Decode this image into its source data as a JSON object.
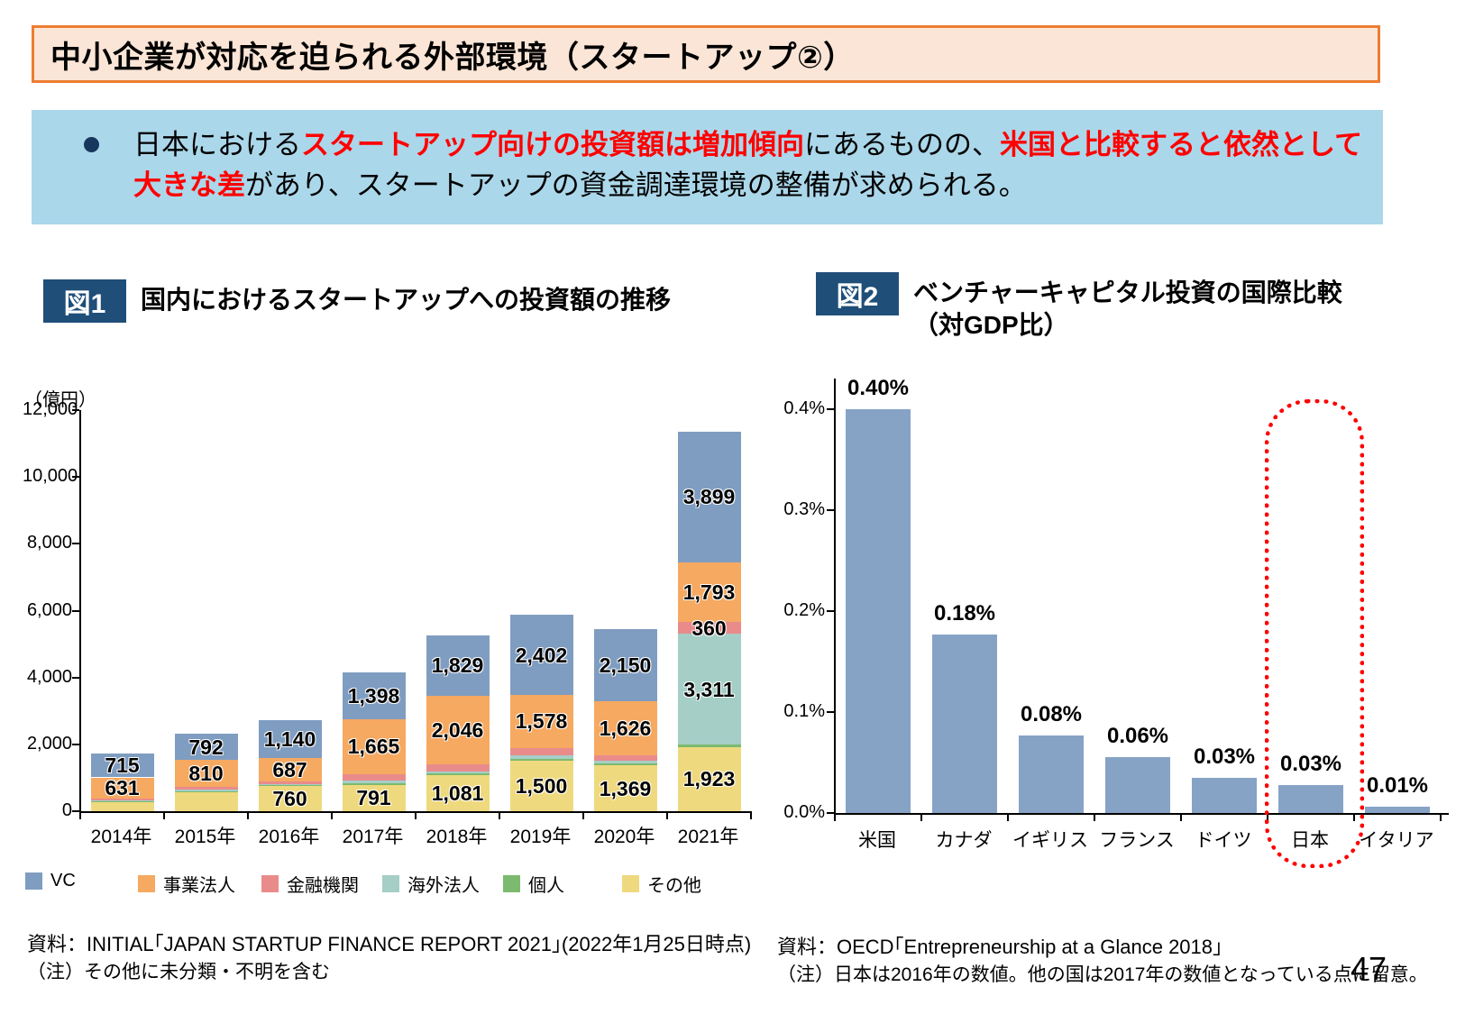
{
  "header": {
    "title": "中小企業が対応を迫られる外部環境（スタートアップ②）"
  },
  "lead": {
    "segments": [
      {
        "text": "日本における",
        "emphasis": false
      },
      {
        "text": "スタートアップ向けの投資額は増加傾向",
        "emphasis": true
      },
      {
        "text": "にあるものの、",
        "emphasis": false
      },
      {
        "text": "米国と比較すると依然として大きな差",
        "emphasis": true
      },
      {
        "text": "があり、スタートアップの資金調達環境の整備が求められる。",
        "emphasis": false
      }
    ]
  },
  "fig1": {
    "badge": "図1",
    "title": "国内におけるスタートアップへの投資額の推移",
    "unit_label": "（億円）",
    "source": "資料：INITIAL｢JAPAN STARTUP FINANCE REPORT 2021｣(2022年1月25日時点)",
    "note": "（注）その他に未分類・不明を含む"
  },
  "fig2": {
    "badge": "図2",
    "title_line1": "ベンチャーキャピタル投資の国際比較",
    "title_line2": "（対GDP比）",
    "source": "資料：OECD｢Entrepreneurship at a Glance 2018｣",
    "note": "（注）日本は2016年の数値。他の国は2017年の数値となっている点に留意。"
  },
  "page_number": "47",
  "colors": {
    "title_bar_bg": "#FBE5D6",
    "title_bar_border": "#ED7D31",
    "lead_bg": "#ABD7EA",
    "bullet": "#17375E",
    "badge_bg": "#1F4E79",
    "emphasis_red": "#FF0000",
    "highlight_red": "#FF0000",
    "axis_black": "#000000"
  },
  "chart_data": [
    {
      "type": "bar",
      "stacked": true,
      "title": "国内におけるスタートアップへの投資額の推移",
      "ylabel": "（億円）",
      "ylim": [
        0,
        12000
      ],
      "grid": false,
      "legend_position": "bottom",
      "categories": [
        "2014年",
        "2015年",
        "2016年",
        "2017年",
        "2018年",
        "2019年",
        "2020年",
        "2021年"
      ],
      "yticks": [
        {
          "v": 0,
          "label": "0"
        },
        {
          "v": 2000,
          "label": "2,000"
        },
        {
          "v": 4000,
          "label": "4,000"
        },
        {
          "v": 6000,
          "label": "6,000"
        },
        {
          "v": 8000,
          "label": "8,000"
        },
        {
          "v": 10000,
          "label": "10,000"
        },
        {
          "v": 12000,
          "label": "12,000"
        }
      ],
      "series_note": "series listed bottom-to-top of the stack; unlabeled thin segments are pixel estimates",
      "series": [
        {
          "key": "other",
          "name": "その他",
          "color": "#EFD97E",
          "values": [
            280,
            560,
            760,
            791,
            1081,
            1500,
            1369,
            1923
          ],
          "labels": [
            null,
            null,
            "760",
            "791",
            "1,081",
            "1,500",
            "1,369",
            "1,923"
          ]
        },
        {
          "key": "individual",
          "name": "個人",
          "color": "#7CBA6F",
          "values": [
            35,
            40,
            25,
            40,
            60,
            55,
            55,
            65
          ],
          "labels": [
            null,
            null,
            null,
            null,
            null,
            null,
            null,
            null
          ]
        },
        {
          "key": "foreign",
          "name": "海外法人",
          "color": "#A5CEC6",
          "values": [
            20,
            45,
            20,
            90,
            55,
            110,
            75,
            3311
          ],
          "labels": [
            null,
            null,
            null,
            null,
            null,
            null,
            null,
            "3,311"
          ]
        },
        {
          "key": "financial",
          "name": "金融機関",
          "color": "#E98B8B",
          "values": [
            45,
            75,
            95,
            175,
            200,
            230,
            175,
            360
          ],
          "labels": [
            null,
            null,
            null,
            null,
            null,
            null,
            null,
            "360"
          ]
        },
        {
          "key": "corporate",
          "name": "事業法人",
          "color": "#F6A961",
          "values": [
            631,
            810,
            687,
            1665,
            2046,
            1578,
            1626,
            1793
          ],
          "labels": [
            "631",
            "810",
            "687",
            "1,665",
            "2,046",
            "1,578",
            "1,626",
            "1,793"
          ]
        },
        {
          "key": "vc",
          "name": "VC",
          "color": "#7F9DC1",
          "values": [
            715,
            792,
            1140,
            1398,
            1829,
            2402,
            2150,
            3899
          ],
          "labels": [
            "715",
            "792",
            "1,140",
            "1,398",
            "1,829",
            "2,402",
            "2,150",
            "3,899"
          ]
        }
      ],
      "legend_order": [
        "VC",
        "事業法人",
        "金融機関",
        "海外法人",
        "個人",
        "その他"
      ]
    },
    {
      "type": "bar",
      "title": "ベンチャーキャピタル投資の国際比較（対GDP比）",
      "grid": false,
      "categories": [
        "米国",
        "カナダ",
        "イギリス",
        "フランス",
        "ドイツ",
        "日本",
        "イタリア"
      ],
      "values": [
        0.4,
        0.18,
        0.08,
        0.06,
        0.03,
        0.03,
        0.01
      ],
      "bar_labels": [
        "0.40%",
        "0.18%",
        "0.08%",
        "0.06%",
        "0.03%",
        "0.03%",
        "0.01%"
      ],
      "values_render": [
        0.4,
        0.177,
        0.077,
        0.055,
        0.035,
        0.028,
        0.006
      ],
      "ylim": [
        0,
        0.45
      ],
      "yticks": [
        {
          "v": 0.0,
          "label": "0.0%"
        },
        {
          "v": 0.1,
          "label": "0.1%"
        },
        {
          "v": 0.2,
          "label": "0.2%"
        },
        {
          "v": 0.3,
          "label": "0.3%"
        },
        {
          "v": 0.4,
          "label": "0.4%"
        }
      ],
      "bar_color": "#86A3C6",
      "highlight": {
        "category": "日本",
        "style": "red-dotted-rounded-rect"
      }
    }
  ]
}
